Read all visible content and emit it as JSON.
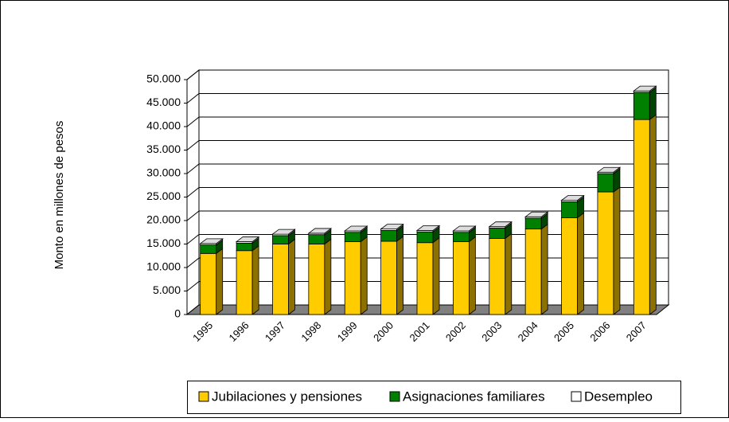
{
  "chart_data": {
    "type": "bar3d_stacked",
    "y_label": "Monto en millones de pesos",
    "categories": [
      "1995",
      "1996",
      "1997",
      "1998",
      "1999",
      "2000",
      "2001",
      "2002",
      "2003",
      "2004",
      "2005",
      "2006",
      "2007"
    ],
    "series": [
      {
        "name": "Jubilaciones y pensiones",
        "color": "#FFCC00",
        "values": [
          13000,
          13600,
          15000,
          15000,
          15500,
          15600,
          15300,
          15500,
          16200,
          18200,
          20600,
          26100,
          41500
        ]
      },
      {
        "name": "Asignaciones familiares",
        "color": "#008000",
        "values": [
          1800,
          1600,
          1800,
          2000,
          2000,
          2300,
          2300,
          2000,
          2200,
          2300,
          3400,
          3900,
          5800
        ]
      },
      {
        "name": "Desempleo",
        "color": "#FFFFFF",
        "values": [
          300,
          300,
          300,
          300,
          300,
          300,
          300,
          300,
          300,
          300,
          300,
          300,
          300
        ]
      }
    ],
    "ylim": [
      0,
      50000
    ],
    "yticks": [
      0,
      {
        "value": 5000,
        "label": "5.000"
      },
      {
        "value": 10000,
        "label": "10.000"
      },
      {
        "value": 15000,
        "label": "15.000"
      },
      {
        "value": 20000,
        "label": "20.000"
      },
      {
        "value": 25000,
        "label": "25.000"
      },
      {
        "value": 30000,
        "label": "30.000"
      },
      {
        "value": 35000,
        "label": "35.000"
      },
      {
        "value": 40000,
        "label": "40.000"
      },
      {
        "value": 45000,
        "label": "45.000"
      },
      {
        "value": 50000,
        "label": "50.000"
      }
    ],
    "grid": true,
    "legend": "bottom"
  }
}
